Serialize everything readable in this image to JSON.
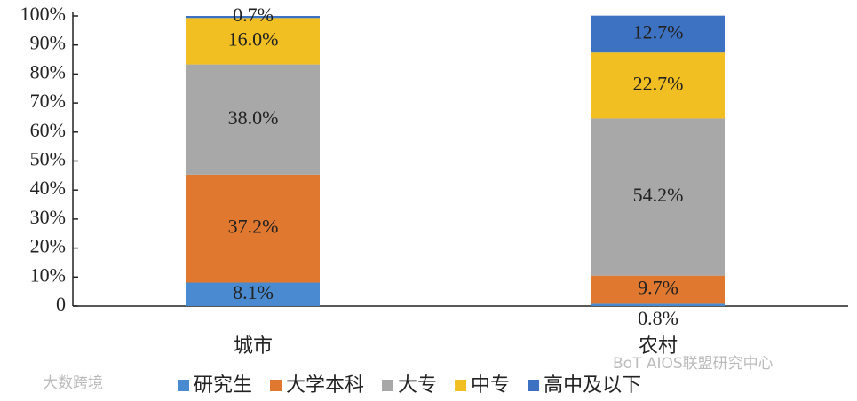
{
  "chart_data": {
    "type": "stacked_bar",
    "categories": [
      "城市",
      "农村"
    ],
    "series": [
      {
        "name": "研究生",
        "color": "#4a8ad0",
        "values": [
          8.1,
          0.8
        ],
        "value_labels": [
          "8.1%",
          "0.8%"
        ]
      },
      {
        "name": "大学本科",
        "color": "#e0782f",
        "values": [
          37.2,
          9.7
        ],
        "value_labels": [
          "37.2%",
          "9.7%"
        ]
      },
      {
        "name": "大专",
        "color": "#a8a8a8",
        "values": [
          38.0,
          54.2
        ],
        "value_labels": [
          "38.0%",
          "54.2%"
        ]
      },
      {
        "name": "中专",
        "color": "#f2bf22",
        "values": [
          16.0,
          22.7
        ],
        "value_labels": [
          "16.0%",
          "22.7%"
        ]
      },
      {
        "name": "高中及以下",
        "color": "#3d72c2",
        "values": [
          0.7,
          12.7
        ],
        "value_labels": [
          "0.7%",
          "12.7%"
        ]
      }
    ],
    "ylim": [
      0,
      100
    ],
    "yticks": [
      0,
      {
        "value": 10,
        "label": "10%"
      },
      {
        "value": 20,
        "label": "20%"
      },
      {
        "value": 30,
        "label": "30%"
      },
      {
        "value": 40,
        "label": "40%"
      },
      {
        "value": 50,
        "label": "50%"
      },
      {
        "value": 60,
        "label": "60%"
      },
      {
        "value": 70,
        "label": "70%"
      },
      {
        "value": 80,
        "label": "80%"
      },
      {
        "value": 90,
        "label": "90%"
      },
      {
        "value": 100,
        "label": "100%"
      }
    ],
    "legend": "bottom",
    "watermarks": [
      "大数跨境",
      "BoT AIOS联盟研究中心"
    ]
  }
}
